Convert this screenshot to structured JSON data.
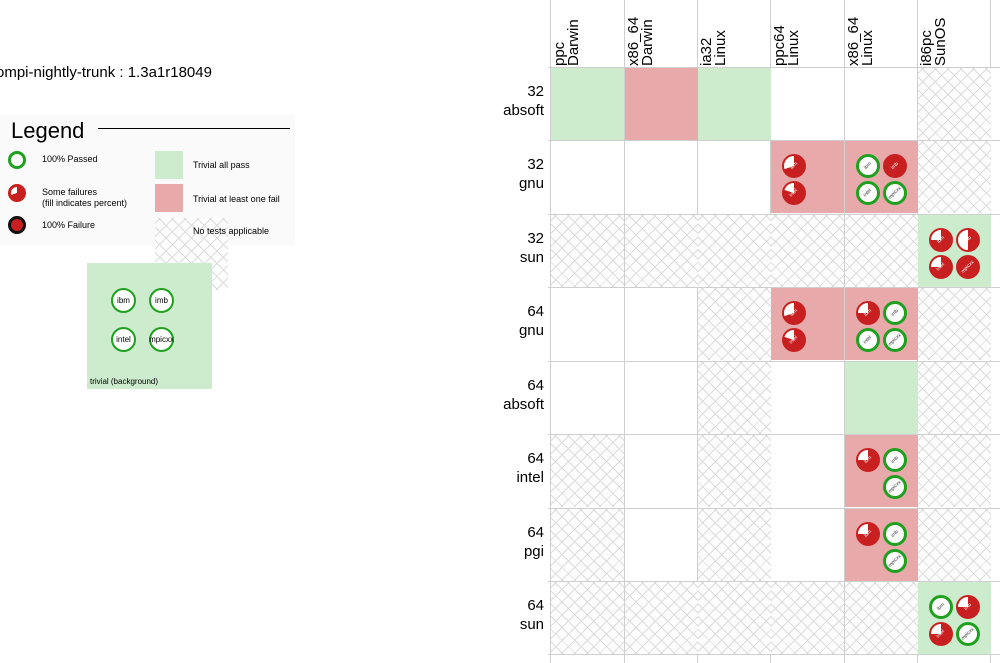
{
  "title": "ompi-nightly-trunk : 1.3a1r18049",
  "legend": {
    "heading": "Legend",
    "passed": "100% Passed",
    "some_failures": [
      "Some failures",
      "(fill indicates percent)"
    ],
    "failure": "100% Failure",
    "trivial_pass": "Trivial all pass",
    "trivial_fail": "Trivial at least one fail",
    "no_tests": "No tests applicable",
    "example_labels": [
      "ibm",
      "imb",
      "intel",
      "mpicxx"
    ],
    "example_caption": "trivial (background)"
  },
  "colors": {
    "pass_ring": "#1fa01f",
    "fail": "#c82020",
    "trivial_pass_bg": "#cdeccd",
    "trivial_fail_bg": "#e8a9aa"
  },
  "columns": [
    [
      "ppc",
      "Darwin"
    ],
    [
      "x86_64",
      "Darwin"
    ],
    [
      "ia32",
      "Linux"
    ],
    [
      "ppc64",
      "Linux"
    ],
    [
      "x86_64",
      "Linux"
    ],
    [
      "i86pc",
      "SunOS"
    ]
  ],
  "rows": [
    {
      "bits": "32",
      "compiler": "absoft",
      "cells": [
        {
          "bg": "green"
        },
        {
          "bg": "red"
        },
        {
          "bg": "green"
        },
        {
          "bg": "none"
        },
        {
          "bg": "none"
        },
        {
          "bg": "na"
        }
      ]
    },
    {
      "bits": "32",
      "compiler": "gnu",
      "cells": [
        {
          "bg": "none"
        },
        {
          "bg": "none"
        },
        {
          "bg": "none"
        },
        {
          "bg": "red",
          "dots": [
            {
              "s": "fail",
              "f": 0.7,
              "t": "ibm"
            },
            null,
            {
              "s": "fail",
              "f": 0.8,
              "t": "intel"
            },
            null
          ]
        },
        {
          "bg": "red",
          "dots": [
            {
              "s": "pass",
              "t": "ibm"
            },
            {
              "s": "fail",
              "f": 1,
              "t": "imb"
            },
            {
              "s": "pass",
              "t": "intel"
            },
            {
              "s": "pass",
              "t": "mpicxx"
            }
          ]
        },
        {
          "bg": "na"
        }
      ]
    },
    {
      "bits": "32",
      "compiler": "sun",
      "cells": [
        {
          "bg": "na"
        },
        {
          "bg": "na"
        },
        {
          "bg": "na"
        },
        {
          "bg": "na"
        },
        {
          "bg": "na"
        },
        {
          "bg": "green",
          "dots": [
            {
              "s": "fail",
              "f": 0.75,
              "t": "ibm"
            },
            {
              "s": "fail",
              "f": 0.5,
              "t": "imb"
            },
            {
              "s": "fail",
              "f": 0.75,
              "t": "intel"
            },
            {
              "s": "fail",
              "f": 1,
              "t": "mpicxx"
            }
          ]
        }
      ]
    },
    {
      "bits": "64",
      "compiler": "gnu",
      "cells": [
        {
          "bg": "none"
        },
        {
          "bg": "none"
        },
        {
          "bg": "na"
        },
        {
          "bg": "red",
          "dots": [
            {
              "s": "fail",
              "f": 0.7,
              "t": "ibm"
            },
            null,
            {
              "s": "fail",
              "f": 0.8,
              "t": "intel"
            },
            null
          ]
        },
        {
          "bg": "red",
          "dots": [
            {
              "s": "fail",
              "f": 0.75,
              "t": "ibm"
            },
            {
              "s": "pass",
              "t": "imb"
            },
            {
              "s": "pass",
              "t": "intel"
            },
            {
              "s": "pass",
              "t": "mpicxx"
            }
          ]
        },
        {
          "bg": "na"
        }
      ]
    },
    {
      "bits": "64",
      "compiler": "absoft",
      "cells": [
        {
          "bg": "none"
        },
        {
          "bg": "none"
        },
        {
          "bg": "na"
        },
        {
          "bg": "none"
        },
        {
          "bg": "green"
        },
        {
          "bg": "na"
        }
      ]
    },
    {
      "bits": "64",
      "compiler": "intel",
      "cells": [
        {
          "bg": "na"
        },
        {
          "bg": "none"
        },
        {
          "bg": "na"
        },
        {
          "bg": "none"
        },
        {
          "bg": "red",
          "dots": [
            {
              "s": "fail",
              "f": 0.75,
              "t": "ibm"
            },
            {
              "s": "pass",
              "t": "imb"
            },
            null,
            {
              "s": "pass",
              "t": "mpicxx"
            }
          ]
        },
        {
          "bg": "na"
        }
      ]
    },
    {
      "bits": "64",
      "compiler": "pgi",
      "cells": [
        {
          "bg": "na"
        },
        {
          "bg": "none"
        },
        {
          "bg": "na"
        },
        {
          "bg": "none"
        },
        {
          "bg": "red",
          "dots": [
            {
              "s": "fail",
              "f": 0.75,
              "t": "ibm"
            },
            {
              "s": "pass",
              "t": "imb"
            },
            null,
            {
              "s": "pass",
              "t": "mpicxx"
            }
          ]
        },
        {
          "bg": "na"
        }
      ]
    },
    {
      "bits": "64",
      "compiler": "sun",
      "cells": [
        {
          "bg": "na"
        },
        {
          "bg": "na"
        },
        {
          "bg": "na"
        },
        {
          "bg": "na"
        },
        {
          "bg": "na"
        },
        {
          "bg": "green",
          "dots": [
            {
              "s": "pass",
              "t": "ibm"
            },
            {
              "s": "fail",
              "f": 0.75,
              "t": "imb"
            },
            {
              "s": "fail",
              "f": 0.75,
              "t": "intel"
            },
            {
              "s": "pass",
              "t": "mpicxx"
            }
          ]
        }
      ]
    }
  ]
}
